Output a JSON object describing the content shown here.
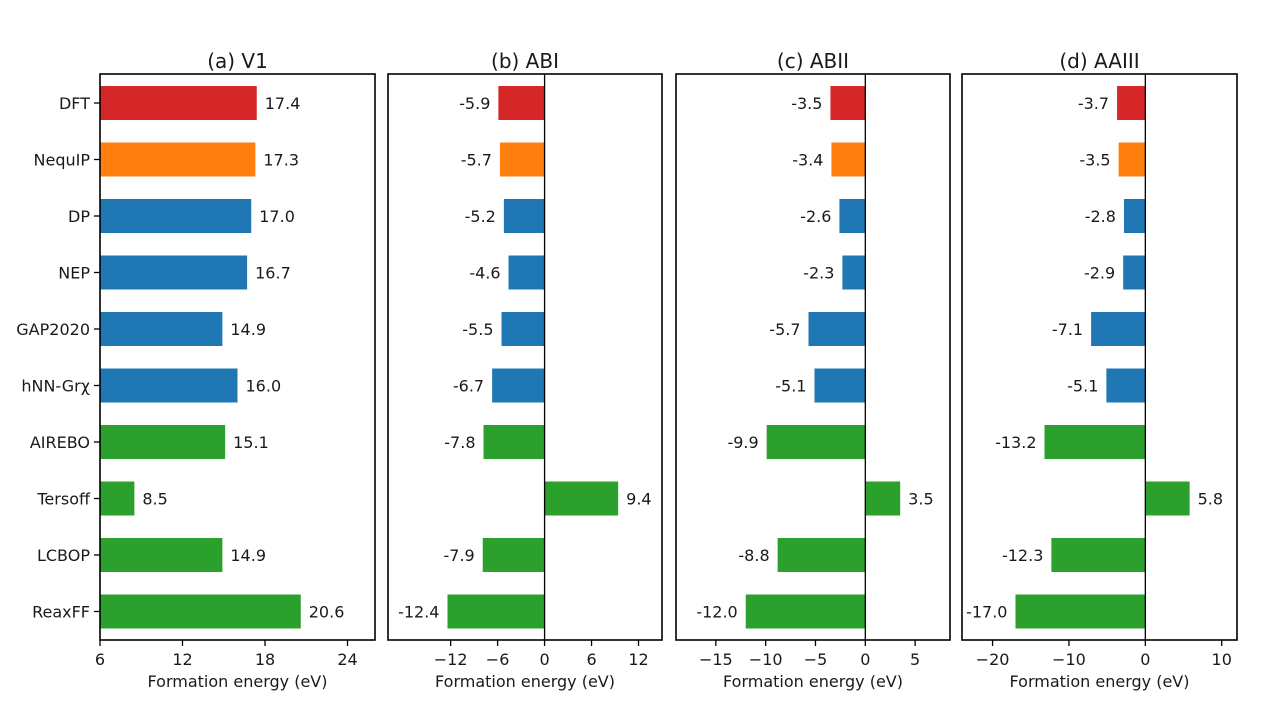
{
  "figure": {
    "y_axis_models": [
      "DFT",
      "NequIP",
      "DP",
      "NEP",
      "GAP2020",
      "hNN-Grχ",
      "AIREBO",
      "Tersoff",
      "LCBOP",
      "ReaxFF"
    ]
  },
  "colors": {
    "dft": "#d62728",
    "nequip": "#ff7f0e",
    "ml_potentials": "#1f77b4",
    "empirical_potentials": "#2ca02c"
  },
  "chart_data": [
    {
      "type": "bar",
      "orientation": "horizontal",
      "title": "(a) V1",
      "xlabel": "Formation energy (eV)",
      "categories": [
        "DFT",
        "NequIP",
        "DP",
        "NEP",
        "GAP2020",
        "hNN-Grχ",
        "AIREBO",
        "Tersoff",
        "LCBOP",
        "ReaxFF"
      ],
      "values": [
        17.4,
        17.3,
        17.0,
        16.7,
        14.9,
        16.0,
        15.1,
        8.5,
        14.9,
        20.6
      ],
      "value_labels": [
        "17.4",
        "17.3",
        "17.0",
        "16.7",
        "14.9",
        "16.0",
        "15.1",
        "8.5",
        "14.9",
        "20.6"
      ],
      "bar_colors": [
        "#d62728",
        "#ff7f0e",
        "#1f77b4",
        "#1f77b4",
        "#1f77b4",
        "#1f77b4",
        "#2ca02c",
        "#2ca02c",
        "#2ca02c",
        "#2ca02c"
      ],
      "xlim": [
        6,
        26
      ],
      "xticks": [
        6,
        12,
        18,
        24
      ],
      "xtick_labels": [
        "6",
        "12",
        "18",
        "24"
      ],
      "show_zero_line": false,
      "grid": false
    },
    {
      "type": "bar",
      "orientation": "horizontal",
      "title": "(b) ABI",
      "xlabel": "Formation energy (eV)",
      "categories": [
        "DFT",
        "NequIP",
        "DP",
        "NEP",
        "GAP2020",
        "hNN-Grχ",
        "AIREBO",
        "Tersoff",
        "LCBOP",
        "ReaxFF"
      ],
      "values": [
        -5.9,
        -5.7,
        -5.2,
        -4.6,
        -5.5,
        -6.7,
        -7.8,
        9.4,
        -7.9,
        -12.4
      ],
      "value_labels": [
        "-5.9",
        "-5.7",
        "-5.2",
        "-4.6",
        "-5.5",
        "-6.7",
        "-7.8",
        "9.4",
        "-7.9",
        "-12.4"
      ],
      "bar_colors": [
        "#d62728",
        "#ff7f0e",
        "#1f77b4",
        "#1f77b4",
        "#1f77b4",
        "#1f77b4",
        "#2ca02c",
        "#2ca02c",
        "#2ca02c",
        "#2ca02c"
      ],
      "xlim": [
        -20,
        15
      ],
      "xticks": [
        -12,
        -6,
        0,
        6,
        12
      ],
      "xtick_labels": [
        "−12",
        "−6",
        "0",
        "6",
        "12"
      ],
      "show_zero_line": true,
      "grid": false
    },
    {
      "type": "bar",
      "orientation": "horizontal",
      "title": "(c) ABII",
      "xlabel": "Formation energy (eV)",
      "categories": [
        "DFT",
        "NequIP",
        "DP",
        "NEP",
        "GAP2020",
        "hNN-Grχ",
        "AIREBO",
        "Tersoff",
        "LCBOP",
        "ReaxFF"
      ],
      "values": [
        -3.5,
        -3.4,
        -2.6,
        -2.3,
        -5.7,
        -5.1,
        -9.9,
        3.5,
        -8.8,
        -12.0
      ],
      "value_labels": [
        "-3.5",
        "-3.4",
        "-2.6",
        "-2.3",
        "-5.7",
        "-5.1",
        "-9.9",
        "3.5",
        "-8.8",
        "-12.0"
      ],
      "bar_colors": [
        "#d62728",
        "#ff7f0e",
        "#1f77b4",
        "#1f77b4",
        "#1f77b4",
        "#1f77b4",
        "#2ca02c",
        "#2ca02c",
        "#2ca02c",
        "#2ca02c"
      ],
      "xlim": [
        -19,
        8.5
      ],
      "xticks": [
        -15,
        -10,
        -5,
        0,
        5
      ],
      "xtick_labels": [
        "−15",
        "−10",
        "−5",
        "0",
        "5"
      ],
      "show_zero_line": true,
      "grid": false
    },
    {
      "type": "bar",
      "orientation": "horizontal",
      "title": "(d) AAIII",
      "xlabel": "Formation energy (eV)",
      "categories": [
        "DFT",
        "NequIP",
        "DP",
        "NEP",
        "GAP2020",
        "hNN-Grχ",
        "AIREBO",
        "Tersoff",
        "LCBOP",
        "ReaxFF"
      ],
      "values": [
        -3.7,
        -3.5,
        -2.8,
        -2.9,
        -7.1,
        -5.1,
        -13.2,
        5.8,
        -12.3,
        -17.0
      ],
      "value_labels": [
        "-3.7",
        "-3.5",
        "-2.8",
        "-2.9",
        "-7.1",
        "-5.1",
        "-13.2",
        "5.8",
        "-12.3",
        "-17.0"
      ],
      "bar_colors": [
        "#d62728",
        "#ff7f0e",
        "#1f77b4",
        "#1f77b4",
        "#1f77b4",
        "#1f77b4",
        "#2ca02c",
        "#2ca02c",
        "#2ca02c",
        "#2ca02c"
      ],
      "xlim": [
        -24,
        12
      ],
      "xticks": [
        -20,
        -10,
        0,
        10
      ],
      "xtick_labels": [
        "−20",
        "−10",
        "0",
        "10"
      ],
      "show_zero_line": true,
      "grid": false
    }
  ]
}
